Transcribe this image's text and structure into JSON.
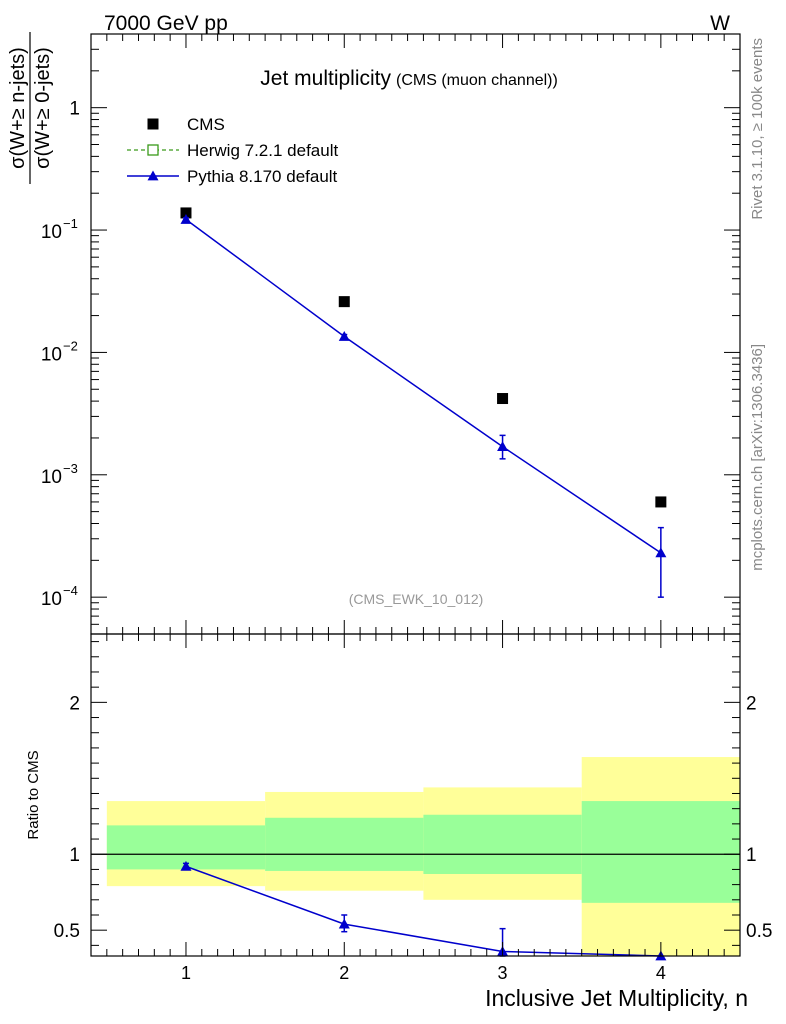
{
  "header": {
    "left": "7000 GeV pp",
    "right": "W"
  },
  "side_labels": {
    "rivet": "Rivet 3.1.10, ≥ 100k events",
    "mcplots": "mcplots.cern.ch [arXiv:1306.3436]"
  },
  "chart_data": {
    "type": "scatter",
    "title": "Jet multiplicity",
    "subtitle": "(CMS (muon channel))",
    "watermark": "(CMS_EWK_10_012)",
    "xlabel": "Inclusive Jet Multiplicity, n",
    "ylabel": "σ(W+≥ n-jets) / σ(W+≥ 0-jets)",
    "ylabel_num": "σ(W+≥ n-jets)",
    "ylabel_den": "σ(W+≥ 0-jets)",
    "xlim": [
      0.4,
      4.5
    ],
    "ylim": [
      5e-05,
      4
    ],
    "y_scale": "log",
    "x_ticks": [
      {
        "value": 1,
        "label": "1"
      },
      {
        "value": 2,
        "label": "2"
      },
      {
        "value": 3,
        "label": "3"
      },
      {
        "value": 4,
        "label": "4"
      }
    ],
    "y_ticks": [
      {
        "value": 1,
        "base": "1",
        "exp": ""
      },
      {
        "value": 0.1,
        "base": "10",
        "exp": "−1"
      },
      {
        "value": 0.01,
        "base": "10",
        "exp": "−2"
      },
      {
        "value": 0.001,
        "base": "10",
        "exp": "−3"
      },
      {
        "value": 0.0001,
        "base": "10",
        "exp": "−4"
      }
    ],
    "legend": {
      "placement": "top-left",
      "entries": [
        {
          "name": "CMS",
          "style": "square",
          "color": "#000000"
        },
        {
          "name": "Herwig 7.2.1 default",
          "style": "open-square-dashed",
          "color": "#3a9a1a"
        },
        {
          "name": "Pythia 8.170 default",
          "style": "triangle-line",
          "color": "#0000cc"
        }
      ]
    },
    "series": [
      {
        "name": "CMS",
        "color": "#000000",
        "x": [
          1,
          2,
          3,
          4
        ],
        "y": [
          0.138,
          0.026,
          0.0042,
          0.0006
        ]
      },
      {
        "name": "Pythia 8.170 default",
        "color": "#0000cc",
        "x": [
          1,
          2,
          3,
          4
        ],
        "y": [
          0.122,
          0.0135,
          0.0017,
          0.00023
        ],
        "y_err_low": [
          0.118,
          0.013,
          0.00135,
          0.0001
        ],
        "y_err_high": [
          0.126,
          0.014,
          0.0021,
          0.00037
        ]
      }
    ],
    "ratio": {
      "ylabel": "Ratio to CMS",
      "ylim": [
        0.33,
        2.45
      ],
      "y_ticks": [
        {
          "value": 0.5,
          "label": "0.5"
        },
        {
          "value": 1,
          "label": "1"
        },
        {
          "value": 2,
          "label": "2"
        }
      ],
      "bands": [
        {
          "x0": 0.5,
          "x1": 1.5,
          "outer": [
            0.79,
            1.35
          ],
          "inner": [
            0.9,
            1.19
          ]
        },
        {
          "x0": 1.5,
          "x1": 2.5,
          "outer": [
            0.76,
            1.41
          ],
          "inner": [
            0.89,
            1.24
          ]
        },
        {
          "x0": 2.5,
          "x1": 3.5,
          "outer": [
            0.7,
            1.44
          ],
          "inner": [
            0.87,
            1.26
          ]
        },
        {
          "x0": 3.5,
          "x1": 4.5,
          "outer": [
            0.33,
            1.64
          ],
          "inner": [
            0.68,
            1.35
          ]
        }
      ],
      "band_colors": {
        "outer": "#ffff99",
        "inner": "#99ff99"
      },
      "series": {
        "name": "Pythia 8.170 default",
        "color": "#0000cc",
        "x": [
          1,
          2,
          3,
          4
        ],
        "y": [
          0.92,
          0.54,
          0.36,
          0.33
        ],
        "y_err_low": [
          0.9,
          0.49,
          0.33,
          0.33
        ],
        "y_err_high": [
          0.94,
          0.6,
          0.51,
          0.33
        ]
      }
    }
  }
}
